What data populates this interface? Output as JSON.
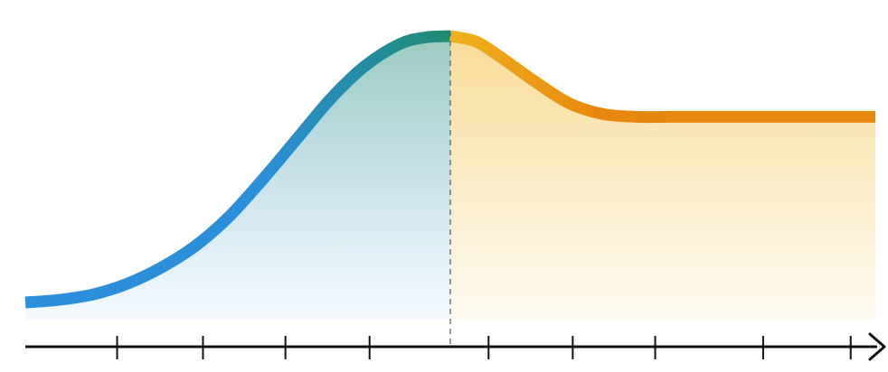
{
  "chart_data": {
    "type": "area",
    "title": "",
    "xlabel": "",
    "ylabel": "",
    "grid": false,
    "legend": false,
    "axis": {
      "x_axis_visible": true,
      "x_axis_arrow": true,
      "y_axis_visible": false,
      "tick_labels": false
    },
    "colors": {
      "rise_start": "#2b8fdb",
      "rise_end": "#1f8a70",
      "fall_start": "#f0b21a",
      "fall_end": "#e8870e",
      "axis": "#111111",
      "divider": "#555555"
    },
    "divider_x": 0.5,
    "series": [
      {
        "segment": "rise",
        "x": [
          0,
          0.04,
          0.08,
          0.12,
          0.16,
          0.2,
          0.24,
          0.28,
          0.32,
          0.36,
          0.4,
          0.44,
          0.47,
          0.5
        ],
        "y": [
          0.01,
          0.02,
          0.04,
          0.08,
          0.14,
          0.22,
          0.33,
          0.47,
          0.62,
          0.77,
          0.89,
          0.97,
          0.995,
          1.0
        ]
      },
      {
        "segment": "fall",
        "x": [
          0.5,
          0.53,
          0.56,
          0.6,
          0.64,
          0.68,
          0.72,
          0.76,
          0.8,
          0.85,
          0.9,
          0.95,
          1.0
        ],
        "y": [
          1.0,
          0.98,
          0.92,
          0.83,
          0.75,
          0.71,
          0.7,
          0.7,
          0.7,
          0.7,
          0.7,
          0.7,
          0.7
        ]
      }
    ],
    "xticks": [
      0.108,
      0.209,
      0.306,
      0.405,
      0.545,
      0.644,
      0.741,
      0.868,
      0.971
    ]
  }
}
